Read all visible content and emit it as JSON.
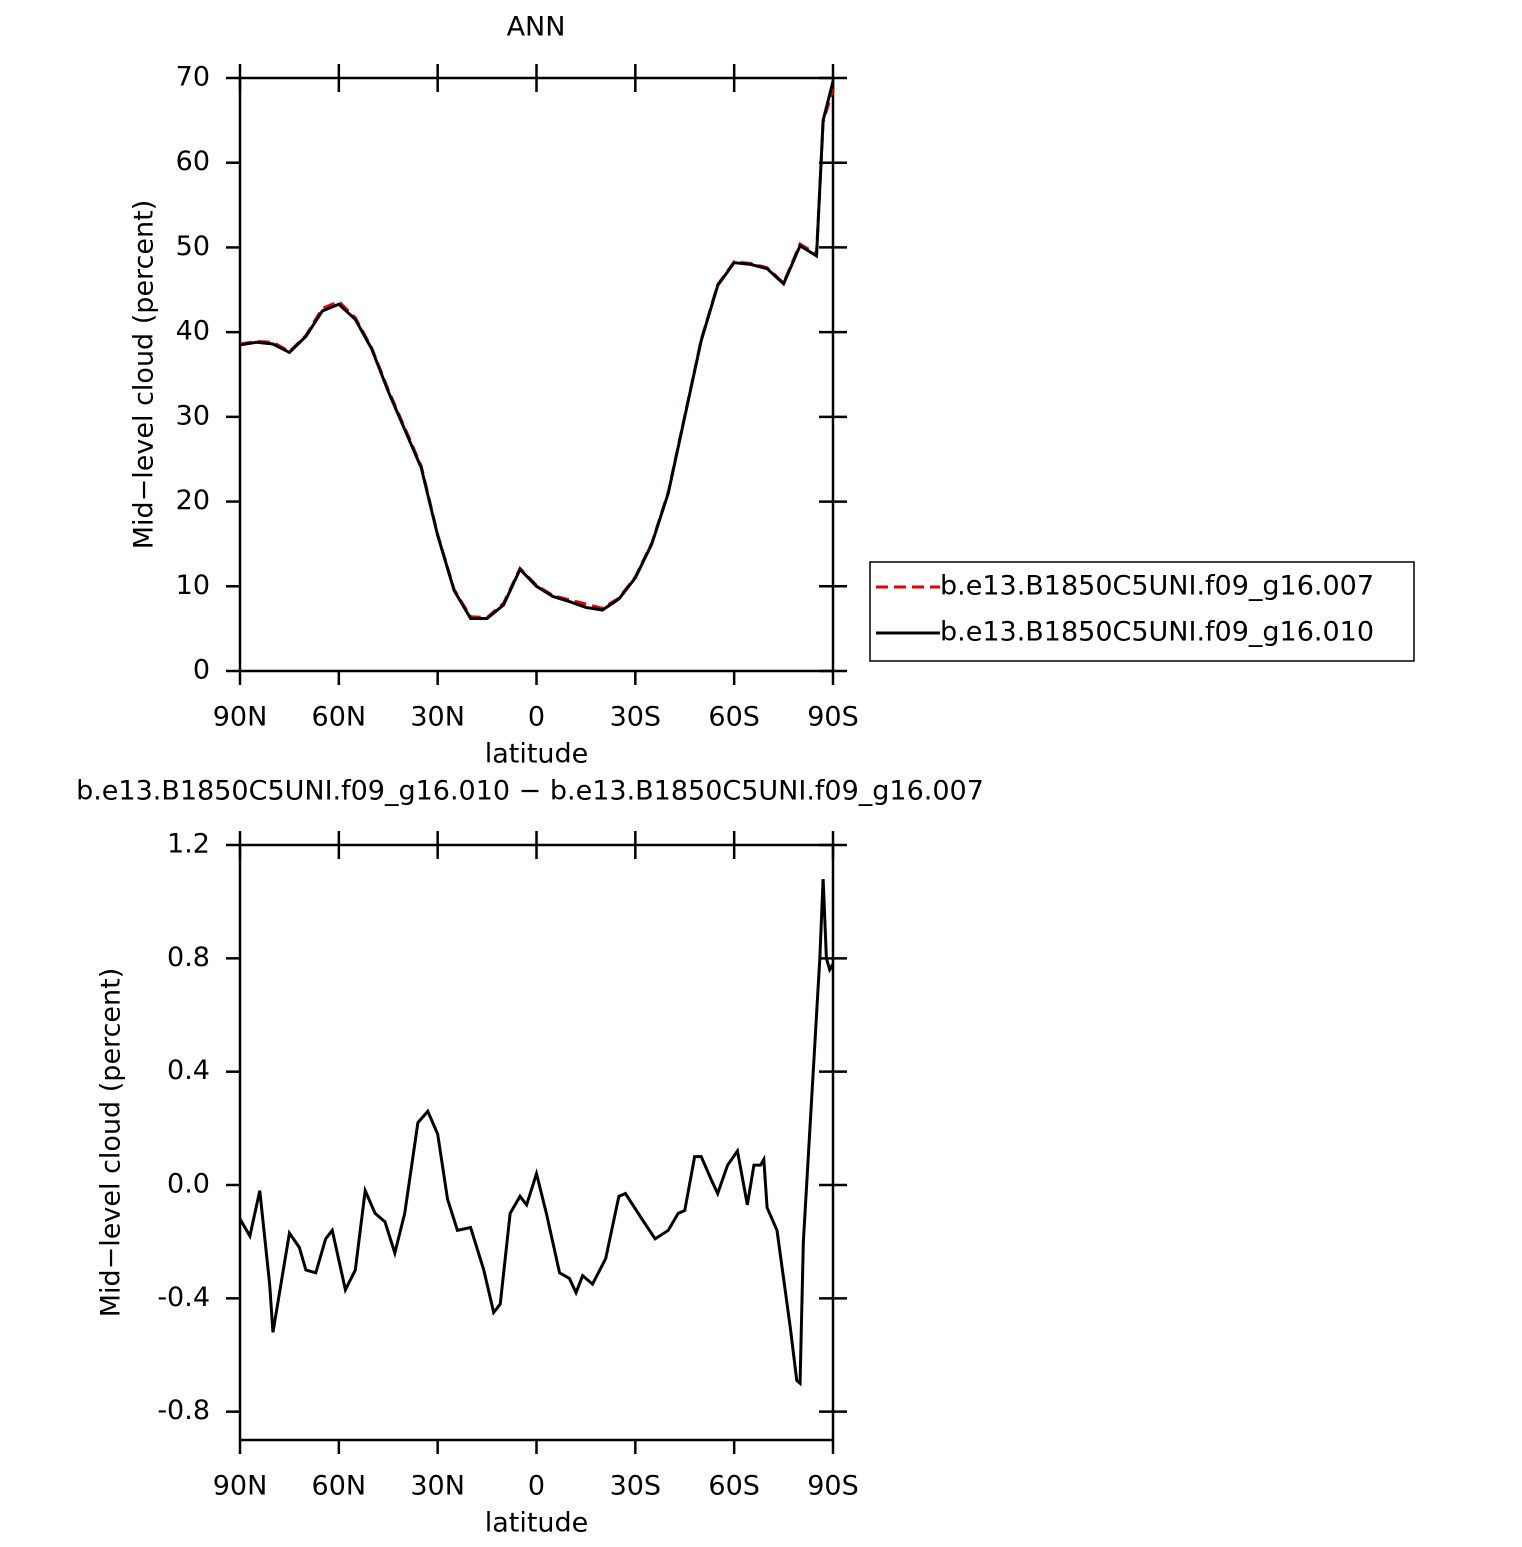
{
  "chart_data": [
    {
      "type": "line",
      "title": "ANN",
      "x_label": "latitude",
      "y_label": "Mid−level cloud (percent)",
      "x": [
        90,
        85,
        80,
        75,
        70,
        65,
        60,
        55,
        50,
        45,
        40,
        35,
        30,
        25,
        20,
        15,
        10,
        5,
        0,
        -5,
        -10,
        -15,
        -20,
        -25,
        -30,
        -35,
        -40,
        -45,
        -50,
        -55,
        -60,
        -65,
        -70,
        -75,
        -80,
        -85,
        -87,
        -90
      ],
      "series": [
        {
          "name": "b.e13.B1850C5UNI.f09_g16.007",
          "color": "#e00000",
          "line_style": "dashed",
          "values": [
            38.6,
            38.9,
            38.8,
            37.7,
            39.6,
            42.8,
            43.6,
            41.7,
            38.1,
            33.2,
            28.7,
            24.2,
            16.1,
            9.6,
            6.4,
            6.3,
            8.0,
            12.1,
            10.1,
            8.9,
            8.4,
            7.9,
            7.4,
            8.6,
            11.1,
            15.1,
            21.1,
            30.1,
            39.1,
            45.6,
            48.3,
            48.1,
            47.6,
            45.8,
            50.4,
            49.2,
            64.8,
            68.7
          ]
        },
        {
          "name": "b.e13.B1850C5UNI.f09_g16.010",
          "color": "#000000",
          "line_style": "solid",
          "values": [
            38.5,
            38.8,
            38.6,
            37.6,
            39.5,
            42.5,
            43.3,
            41.5,
            38.0,
            33.0,
            28.5,
            24.0,
            16.0,
            9.5,
            6.2,
            6.2,
            7.8,
            12.0,
            10.0,
            8.8,
            8.2,
            7.5,
            7.2,
            8.5,
            11.0,
            15.0,
            21.0,
            30.0,
            39.0,
            45.5,
            48.2,
            48.0,
            47.5,
            45.7,
            50.2,
            49.0,
            65.0,
            69.6
          ]
        }
      ],
      "xlim": [
        90,
        -90
      ],
      "xticks": [
        {
          "value": 90,
          "label": "90N"
        },
        {
          "value": 60,
          "label": "60N"
        },
        {
          "value": 30,
          "label": "30N"
        },
        0,
        {
          "value": -30,
          "label": "30S"
        },
        {
          "value": -60,
          "label": "60S"
        },
        {
          "value": -90,
          "label": "90S"
        }
      ],
      "ylim": [
        0,
        70
      ],
      "yticks": [
        0,
        10,
        20,
        30,
        40,
        50,
        60,
        70
      ],
      "legend": "right"
    },
    {
      "type": "line",
      "title": "b.e13.B1850C5UNI.f09_g16.010 − b.e13.B1850C5UNI.f09_g16.007",
      "x_label": "latitude",
      "y_label": "Mid−level cloud (percent)",
      "x": [
        90,
        87,
        84,
        81,
        80,
        75,
        72,
        70,
        67,
        64,
        62,
        58,
        55,
        52,
        49,
        46,
        43,
        40,
        36,
        33,
        30,
        27,
        24,
        20,
        16,
        13,
        11,
        8,
        5,
        3,
        0,
        -3,
        -7,
        -10,
        -12,
        -14,
        -17,
        -21,
        -25,
        -27,
        -32,
        -36,
        -40,
        -43,
        -45,
        -48,
        -50,
        -53,
        -55,
        -58,
        -61,
        -64,
        -66,
        -68,
        -69,
        -70,
        -73,
        -75,
        -77,
        -79,
        -80,
        -81,
        -84,
        -86,
        -87,
        -88,
        -89,
        -90
      ],
      "series": [
        {
          "name": "difference",
          "color": "#000000",
          "line_style": "solid",
          "values": [
            -0.12,
            -0.18,
            -0.02,
            -0.35,
            -0.52,
            -0.17,
            -0.22,
            -0.3,
            -0.31,
            -0.19,
            -0.16,
            -0.37,
            -0.3,
            -0.02,
            -0.1,
            -0.13,
            -0.24,
            -0.1,
            0.22,
            0.26,
            0.18,
            -0.05,
            -0.16,
            -0.15,
            -0.3,
            -0.45,
            -0.42,
            -0.1,
            -0.04,
            -0.07,
            0.04,
            -0.1,
            -0.31,
            -0.33,
            -0.38,
            -0.32,
            -0.35,
            -0.26,
            -0.04,
            -0.03,
            -0.12,
            -0.19,
            -0.16,
            -0.1,
            -0.09,
            0.1,
            0.1,
            0.02,
            -0.03,
            0.07,
            0.12,
            -0.07,
            0.07,
            0.07,
            0.09,
            -0.08,
            -0.16,
            -0.33,
            -0.5,
            -0.69,
            -0.7,
            -0.2,
            0.4,
            0.8,
            1.08,
            0.8,
            0.76,
            0.78
          ]
        }
      ],
      "xlim": [
        90,
        -90
      ],
      "xticks": [
        {
          "value": 90,
          "label": "90N"
        },
        {
          "value": 60,
          "label": "60N"
        },
        {
          "value": 30,
          "label": "30N"
        },
        0,
        {
          "value": -30,
          "label": "30S"
        },
        {
          "value": -60,
          "label": "60S"
        },
        {
          "value": -90,
          "label": "90S"
        }
      ],
      "ylim": [
        -0.9,
        1.2
      ],
      "yticks": [
        -0.8,
        -0.4,
        {
          "value": 0,
          "label": "0.0"
        },
        0.4,
        0.8,
        1.2
      ]
    }
  ]
}
